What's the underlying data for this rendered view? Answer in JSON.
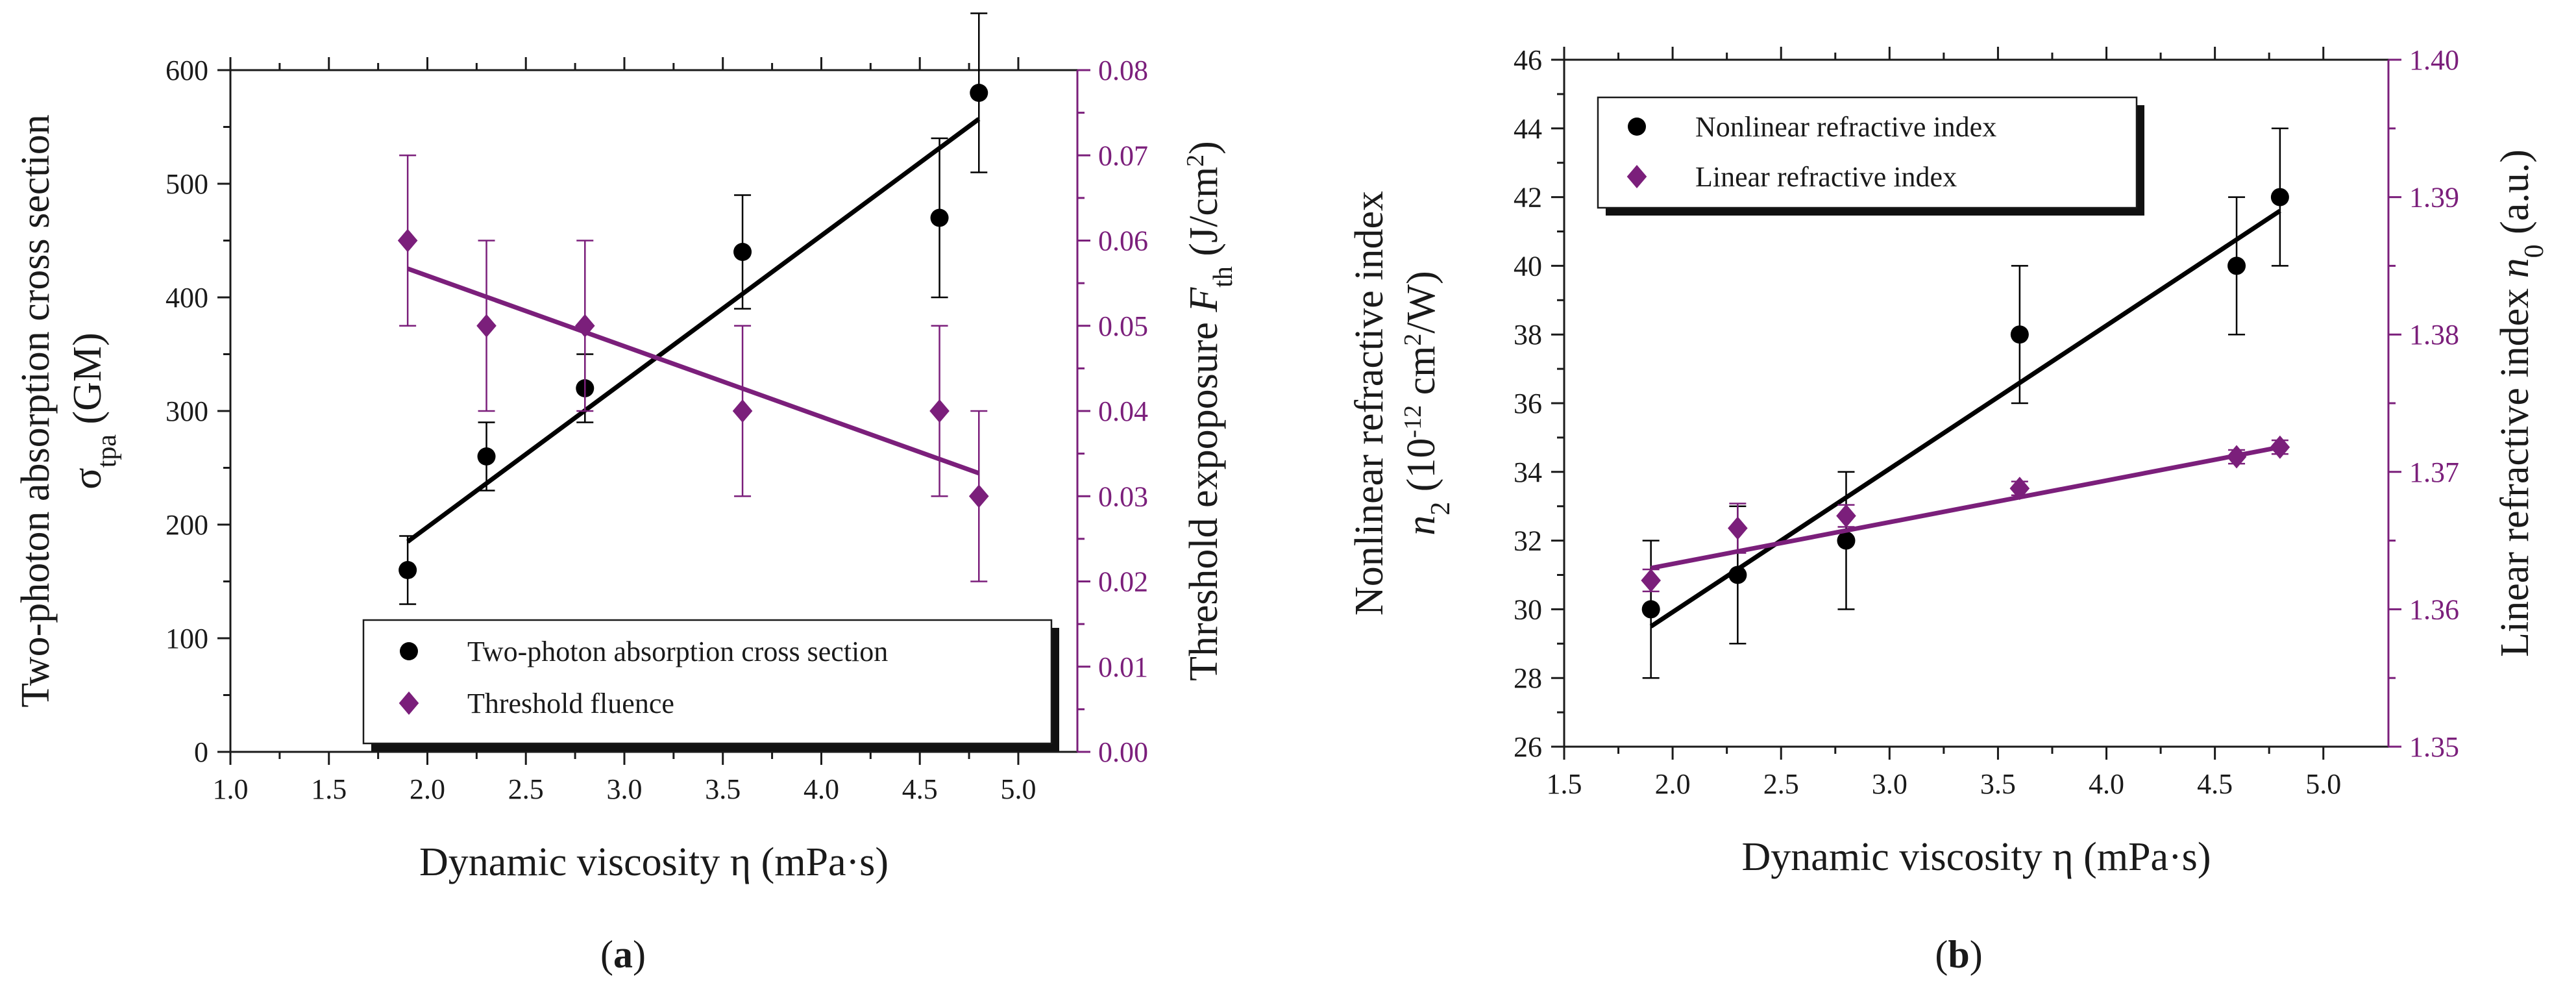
{
  "chart_data": [
    {
      "type": "scatter",
      "panel": "a",
      "panel_label_open": "(",
      "panel_label_letter": "a",
      "panel_label_close": ")",
      "xlabel": "Dynamic viscosity η (mPa·s)",
      "xlim": [
        1.0,
        5.3
      ],
      "xticks": [
        "1.0",
        "1.5",
        "2.0",
        "2.5",
        "3.0",
        "3.5",
        "4.0",
        "4.5",
        "5.0"
      ],
      "ylabel_left_pre": "Two-photon absorption cross section",
      "ylabel_left_sym": "σ",
      "ylabel_left_sub": "tpa",
      "ylabel_left_post": " (GM)",
      "ylim_left": [
        0,
        600
      ],
      "yticks_left": [
        "0",
        "100",
        "200",
        "300",
        "400",
        "500",
        "600"
      ],
      "ylabel_right_pre": "Threshold expoposure ",
      "ylabel_right_sym": "F",
      "ylabel_right_sub": "th",
      "ylabel_right_post": " (J/cm",
      "ylabel_right_sup": "2",
      "ylabel_right_end": ")",
      "ylim_right": [
        0,
        0.08
      ],
      "yticks_right": [
        "0.00",
        "0.01",
        "0.02",
        "0.03",
        "0.04",
        "0.05",
        "0.06",
        "0.07",
        "0.08"
      ],
      "series": [
        {
          "name": "Two-photon absorption cross section",
          "axis": "left",
          "marker": "circle",
          "color": "#000000",
          "x": [
            1.9,
            2.3,
            2.8,
            3.6,
            4.6,
            4.8
          ],
          "y": [
            160,
            260,
            320,
            440,
            470,
            580
          ],
          "err": [
            30,
            30,
            30,
            50,
            70,
            70
          ],
          "fit": [
            [
              1.9,
              185
            ],
            [
              4.8,
              557
            ]
          ]
        },
        {
          "name": "Threshold fluence",
          "axis": "right",
          "marker": "diamond",
          "color": "#7b1f7b",
          "x": [
            1.9,
            2.3,
            2.8,
            3.6,
            4.6,
            4.8
          ],
          "y": [
            0.06,
            0.05,
            0.05,
            0.04,
            0.04,
            0.03
          ],
          "err": [
            0.01,
            0.01,
            0.01,
            0.01,
            0.01,
            0.01
          ],
          "fit": [
            [
              1.9,
              0.0567
            ],
            [
              4.8,
              0.0327
            ]
          ]
        }
      ],
      "legend_position": "bottom-right"
    },
    {
      "type": "scatter",
      "panel": "b",
      "panel_label_open": "(",
      "panel_label_letter": "b",
      "panel_label_close": ")",
      "xlabel": "Dynamic viscosity η (mPa·s)",
      "xlim": [
        1.5,
        5.3
      ],
      "xticks": [
        "1.5",
        "2.0",
        "2.5",
        "3.0",
        "3.5",
        "4.0",
        "4.5",
        "5.0"
      ],
      "ylabel_left_pre": "Nonlinear refractive index",
      "ylabel_left_sym": "n",
      "ylabel_left_sub": "2",
      "ylabel_left_post": " (10",
      "ylabel_left_sup": "-12",
      "ylabel_left_post2": " cm",
      "ylabel_left_sup2": "2",
      "ylabel_left_end": "/W)",
      "ylim_left": [
        26,
        46
      ],
      "yticks_left": [
        "26",
        "28",
        "30",
        "32",
        "34",
        "36",
        "38",
        "40",
        "42",
        "44",
        "46"
      ],
      "ylabel_right_pre": "Linear refractive index ",
      "ylabel_right_sym": "n",
      "ylabel_right_sub": "0",
      "ylabel_right_post": " (a.u.)",
      "ylim_right": [
        1.35,
        1.4
      ],
      "yticks_right": [
        "1.35",
        "1.36",
        "1.37",
        "1.38",
        "1.39",
        "1.40"
      ],
      "series": [
        {
          "name": "Nonlinear refractive index",
          "axis": "left",
          "marker": "circle",
          "color": "#000000",
          "x": [
            1.9,
            2.3,
            2.8,
            3.6,
            4.6,
            4.8
          ],
          "y": [
            30,
            31,
            32,
            38,
            40,
            42
          ],
          "err": [
            2,
            2,
            2,
            2,
            2,
            2
          ],
          "fit": [
            [
              1.9,
              29.5
            ],
            [
              4.8,
              41.6
            ]
          ]
        },
        {
          "name": "Linear refractive index",
          "axis": "right",
          "marker": "diamond",
          "color": "#7b1f7b",
          "x": [
            1.9,
            2.3,
            2.8,
            3.6,
            4.6,
            4.8
          ],
          "y": [
            1.3621,
            1.3659,
            1.3668,
            1.3688,
            1.3711,
            1.3718
          ],
          "err": [
            0.0008,
            0.0018,
            0.0008,
            0.0005,
            0.0005,
            0.0005
          ],
          "fit": [
            [
              1.9,
              1.363
            ],
            [
              4.8,
              1.3718
            ]
          ]
        }
      ],
      "legend_position": "top-left"
    }
  ]
}
